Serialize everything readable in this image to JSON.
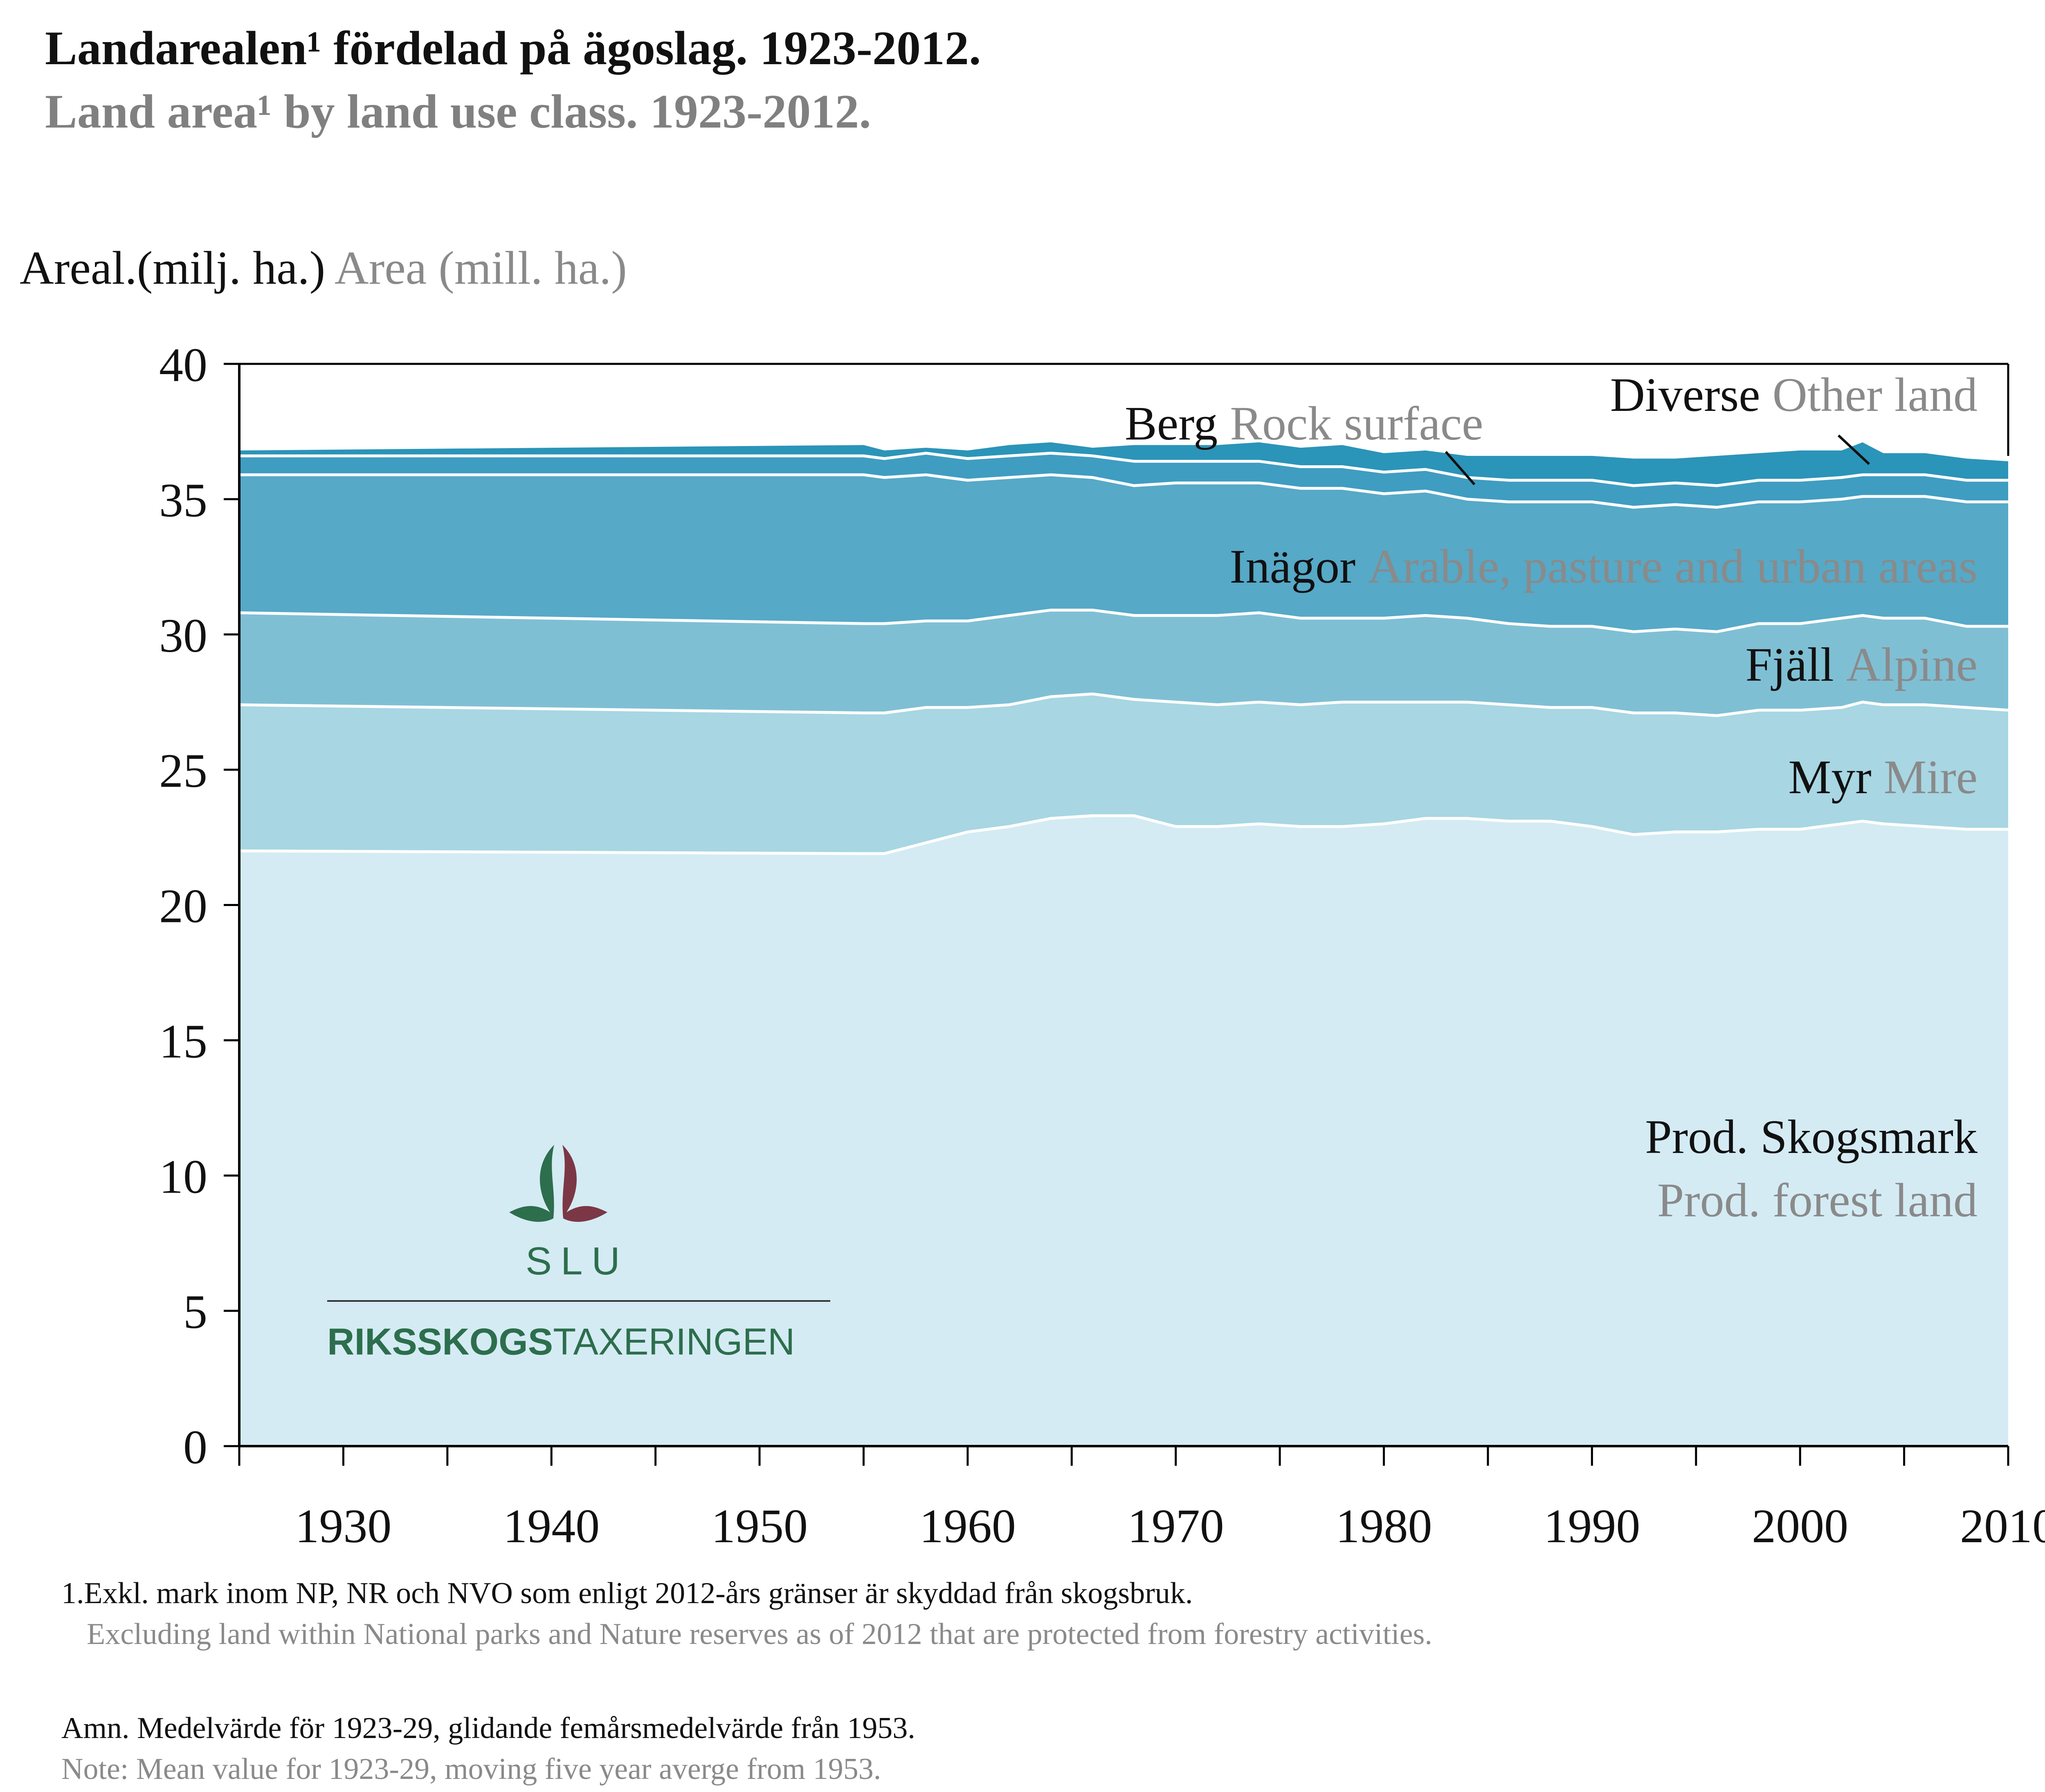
{
  "title_sv": "Landarealen¹ fördelad på ägoslag. 1923-2012.",
  "title_en": "Land area¹ by land use class. 1923-2012.",
  "y_unit_sv": "Areal.(milj. ha.)",
  "y_unit_en": "Area (mill. ha.)",
  "colors": {
    "prod_forest": "#d4ebf4",
    "mire": "#a8d6e3",
    "alpine": "#7fbfd4",
    "arable": "#56a9c7",
    "rock": "#3f9dc1",
    "other": "#2b94b9",
    "boundary": "#ffffff"
  },
  "logo": {
    "acronym": "SLU",
    "name_bold": "RIKSSKOGS",
    "name_regular": "TAXERINGEN"
  },
  "labels": {
    "other_sv": "Diverse",
    "other_en": "Other land",
    "rock_sv": "Berg",
    "rock_en": "Rock surface",
    "arable_sv": "Inägor",
    "arable_en": "Arable, pasture and urban areas",
    "alpine_sv": "Fjäll",
    "alpine_en": "Alpine",
    "mire_sv": "Myr",
    "mire_en": "Mire",
    "forest_sv": "Prod. Skogsmark",
    "forest_en": "Prod. forest land"
  },
  "footnote1_sv": "1.Exkl. mark inom NP, NR och NVO som enligt 2012-års gränser är skyddad från skogsbruk.",
  "footnote1_en": "Excluding land within National parks and Nature reserves as of 2012 that are protected from forestry activities.",
  "note_sv": "Amn. Medelvärde för 1923-29, glidande femårsmedelvärde från 1953.",
  "note_en": "Note: Mean value for 1923-29, moving five year averge from 1953.",
  "chart_data": {
    "type": "area",
    "stacked": true,
    "xlim": [
      1925,
      2010
    ],
    "ylim": [
      0,
      40
    ],
    "x_ticks": [
      1930,
      1940,
      1950,
      1960,
      1970,
      1980,
      1990,
      2000,
      2010
    ],
    "y_ticks": [
      0,
      5,
      10,
      15,
      20,
      25,
      30,
      35,
      40
    ],
    "x": [
      1925,
      1955,
      1956,
      1958,
      1960,
      1962,
      1964,
      1966,
      1968,
      1970,
      1972,
      1974,
      1976,
      1978,
      1980,
      1982,
      1984,
      1986,
      1988,
      1990,
      1992,
      1994,
      1996,
      1998,
      2000,
      2002,
      2003,
      2004,
      2006,
      2008,
      2010
    ],
    "series": [
      {
        "name": "Prod. Skogsmark",
        "values": [
          22.0,
          21.9,
          21.9,
          22.3,
          22.7,
          22.9,
          23.2,
          23.3,
          23.3,
          22.9,
          22.9,
          23.0,
          22.9,
          22.9,
          23.0,
          23.2,
          23.2,
          23.1,
          23.1,
          22.9,
          22.6,
          22.7,
          22.7,
          22.8,
          22.8,
          23.0,
          23.1,
          23.0,
          22.9,
          22.8,
          22.8
        ]
      },
      {
        "name": "Myr",
        "values": [
          5.4,
          5.2,
          5.2,
          5.0,
          4.6,
          4.5,
          4.5,
          4.5,
          4.3,
          4.6,
          4.5,
          4.5,
          4.5,
          4.6,
          4.5,
          4.3,
          4.3,
          4.3,
          4.2,
          4.4,
          4.5,
          4.4,
          4.3,
          4.4,
          4.4,
          4.3,
          4.4,
          4.4,
          4.5,
          4.5,
          4.4
        ]
      },
      {
        "name": "Fjäll",
        "values": [
          3.4,
          3.3,
          3.3,
          3.2,
          3.2,
          3.3,
          3.2,
          3.1,
          3.1,
          3.2,
          3.3,
          3.3,
          3.2,
          3.1,
          3.1,
          3.2,
          3.1,
          3.0,
          3.0,
          3.0,
          3.0,
          3.1,
          3.1,
          3.2,
          3.2,
          3.3,
          3.2,
          3.2,
          3.2,
          3.0,
          3.1
        ]
      },
      {
        "name": "Inägor",
        "values": [
          5.1,
          5.5,
          5.4,
          5.4,
          5.2,
          5.1,
          5.0,
          4.9,
          4.8,
          4.9,
          4.9,
          4.8,
          4.8,
          4.8,
          4.6,
          4.6,
          4.4,
          4.5,
          4.6,
          4.6,
          4.6,
          4.6,
          4.6,
          4.5,
          4.5,
          4.4,
          4.4,
          4.5,
          4.5,
          4.6,
          4.6
        ]
      },
      {
        "name": "Berg",
        "values": [
          0.7,
          0.7,
          0.7,
          0.8,
          0.8,
          0.8,
          0.8,
          0.8,
          0.9,
          0.8,
          0.8,
          0.8,
          0.8,
          0.8,
          0.8,
          0.8,
          0.8,
          0.8,
          0.8,
          0.8,
          0.8,
          0.8,
          0.8,
          0.8,
          0.8,
          0.8,
          0.8,
          0.8,
          0.8,
          0.8,
          0.8
        ]
      },
      {
        "name": "Diverse",
        "values": [
          0.2,
          0.4,
          0.3,
          0.2,
          0.3,
          0.4,
          0.4,
          0.3,
          0.6,
          0.6,
          0.6,
          0.7,
          0.7,
          0.8,
          0.7,
          0.7,
          0.8,
          0.9,
          0.9,
          0.9,
          1.0,
          0.9,
          1.1,
          1.0,
          1.1,
          1.0,
          1.2,
          0.8,
          0.8,
          0.8,
          0.7
        ]
      }
    ]
  }
}
